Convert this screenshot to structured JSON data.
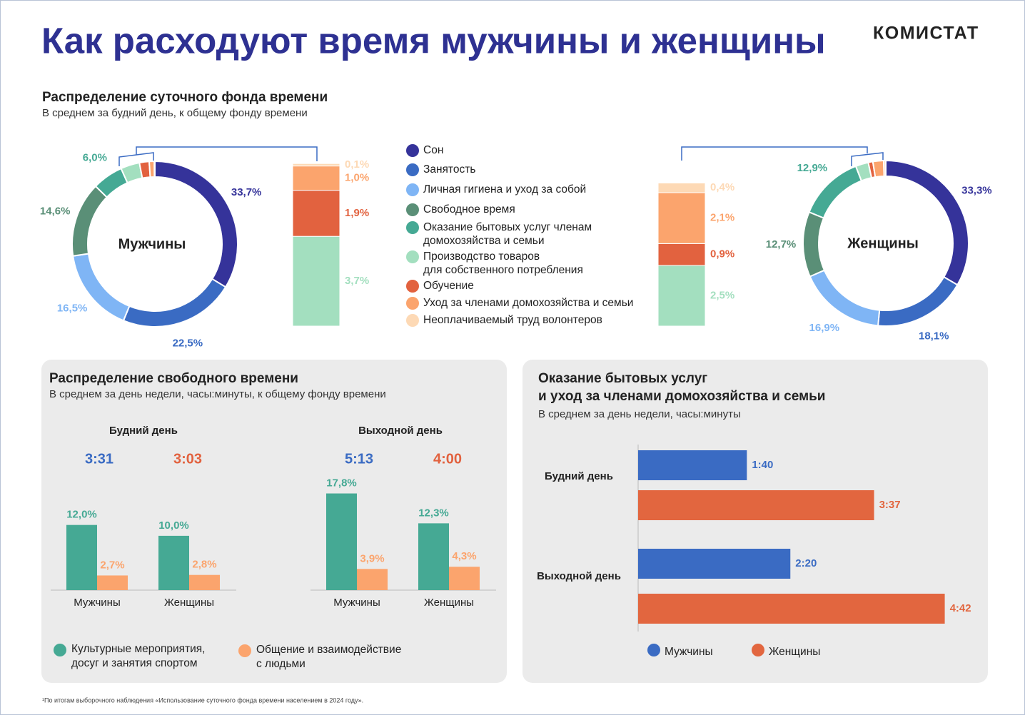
{
  "header": {
    "title": "Как расходуют время мужчины и женщины",
    "brand": "КОМИСТАТ"
  },
  "footnote": "¹По итогам выборочного наблюдения «Использование суточного фонда времени населением в 2024 году».",
  "chart_data": [
    {
      "type": "donut",
      "title": "Распределение суточного фонда времени",
      "subtitle": "В среднем за будний день, к общему фонду времени",
      "categories": [
        "Сон",
        "Занятость",
        "Личная гигиена и уход за собой",
        "Свободное время",
        "Оказание бытовых услуг членам\nдомохозяйства и семьи",
        "Производство товаров\nдля собственного потребления",
        "Обучение",
        "Уход за членами домохозяйства и семьи",
        "Неоплачиваемый труд волонтеров"
      ],
      "colors": [
        "#35339a",
        "#3a6bc3",
        "#7fb5f5",
        "#5a8f77",
        "#45a994",
        "#a3dfbf",
        "#e2623f",
        "#fba46d",
        "#fdd9b5"
      ],
      "series": [
        {
          "name": "Мужчины",
          "values": [
            33.7,
            22.5,
            16.5,
            14.6,
            6.0,
            3.7,
            1.9,
            1.0,
            0.1
          ],
          "value_labels": [
            "33,7%",
            "22,5%",
            "16,5%",
            "14,6%",
            "6,0%",
            "3,7%",
            "1,9%",
            "1,0%",
            "0,1%"
          ]
        },
        {
          "name": "Женщины",
          "values": [
            33.3,
            18.1,
            16.9,
            12.7,
            12.9,
            2.5,
            0.9,
            2.1,
            0.4
          ],
          "value_labels": [
            "33,3%",
            "18,1%",
            "16,9%",
            "12,7%",
            "12,9%",
            "2,5%",
            "0,9%",
            "2,1%",
            "0,4%"
          ]
        }
      ]
    },
    {
      "type": "grouped-bar",
      "title": "Распределение свободного времени",
      "subtitle": "В среднем за день недели, часы:минуты, к общему фонду времени",
      "categories": [
        "Мужчины",
        "Женщины"
      ],
      "total_colors": [
        "#3a6bc3",
        "#e2623f"
      ],
      "ylim": [
        0,
        18
      ],
      "series": [
        {
          "name": "Культурные мероприятия,\nдосуг и занятия спортом",
          "color": "#45a994"
        },
        {
          "name": "Общение и взаимодействие\nс людьми",
          "color": "#fba46d"
        }
      ],
      "panels": [
        {
          "title": "Будний день",
          "totals": [
            "3:31",
            "3:03"
          ],
          "values": [
            [
              12.0,
              10.0
            ],
            [
              2.7,
              2.8
            ]
          ],
          "value_labels": [
            [
              "12,0%",
              "10,0%"
            ],
            [
              "2,7%",
              "2,8%"
            ]
          ]
        },
        {
          "title": "Выходной день",
          "totals": [
            "5:13",
            "4:00"
          ],
          "values": [
            [
              17.8,
              12.3
            ],
            [
              3.9,
              4.3
            ]
          ],
          "value_labels": [
            [
              "17,8%",
              "12,3%"
            ],
            [
              "3,9%",
              "4,3%"
            ]
          ]
        }
      ]
    },
    {
      "type": "hbar",
      "title": [
        "Оказание бытовых услуг",
        "и уход за членами домохозяйства и семьи"
      ],
      "subtitle": "В среднем за день недели, часы:минуты",
      "categories": [
        "Будний день",
        "Выходной день"
      ],
      "xlim": [
        0,
        300
      ],
      "series": [
        {
          "name": "Мужчины",
          "color": "#3a6bc3",
          "values": [
            100,
            140
          ],
          "value_labels": [
            "1:40",
            "2:20"
          ]
        },
        {
          "name": "Женщины",
          "color": "#e2663f",
          "values": [
            217,
            282
          ],
          "value_labels": [
            "3:37",
            "4:42"
          ]
        }
      ]
    }
  ]
}
